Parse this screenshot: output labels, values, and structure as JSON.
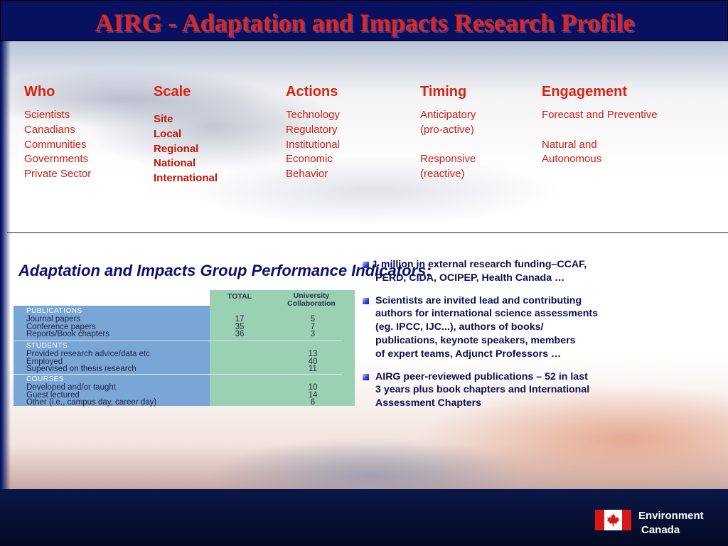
{
  "title": "AIRG - Adaptation and Impacts Research Profile",
  "columns": [
    {
      "heading": "Who",
      "items": [
        "Scientists",
        "Canadians",
        "Communities",
        "Governments",
        "Private Sector"
      ]
    },
    {
      "heading": "Scale",
      "items": [
        "Site",
        "Local",
        "Regional",
        "National",
        "International"
      ]
    },
    {
      "heading": "Actions",
      "items": [
        "Technology",
        "Regulatory",
        "Institutional",
        "Economic",
        "Behavior"
      ]
    },
    {
      "heading": "Timing",
      "items": [
        "Anticipatory",
        "(pro-active)",
        "",
        "Responsive",
        "(reactive)"
      ]
    },
    {
      "heading": "Engagement",
      "items": [
        "Forecast and Preventive",
        "",
        "Natural and",
        "Autonomous"
      ]
    }
  ],
  "subtitle": "Adaptation and Impacts Group Performance Indicators:",
  "table": {
    "headers": {
      "total": "TOTAL",
      "university": "University Collaboration"
    },
    "sections": [
      {
        "label": "PUBLICATIONS",
        "rows": [
          {
            "label": "Journal papers",
            "total": "17",
            "university": "5"
          },
          {
            "label": "Conference papers",
            "total": "35",
            "university": "7"
          },
          {
            "label": "Reports/Book chapters",
            "total": "36",
            "university": "3"
          }
        ]
      },
      {
        "label": "STUDENTS",
        "rows": [
          {
            "label": "Provided research advice/data etc",
            "total": "",
            "university": "13"
          },
          {
            "label": "Employed",
            "total": "",
            "university": "40"
          },
          {
            "label": "Supervised on thesis research",
            "total": "",
            "university": "11"
          }
        ]
      },
      {
        "label": "COURSES",
        "rows": [
          {
            "label": "Developed and/or taught",
            "total": "",
            "university": "10"
          },
          {
            "label": "Guest lectured",
            "total": "",
            "university": "14"
          },
          {
            "label": "Other (i.e., campus day, career day)",
            "total": "",
            "university": "6"
          }
        ]
      }
    ]
  },
  "bullets": [
    [
      "1 million in external research funding–CCAF,",
      "PERD, CIDA, OCIPEP, Health Canada …"
    ],
    [
      "Scientists are invited lead and contributing",
      "authors for international science assessments",
      "(eg. IPCC, IJC...), authors of books/",
      "publications, keynote speakers, members",
      "of expert teams, Adjunct Professors …"
    ],
    [
      "AIRG peer-reviewed publications – 52 in last",
      "3 years plus book chapters and International",
      "Assessment Chapters"
    ]
  ],
  "footer": {
    "org_line1": "Environment",
    "org_line2": "Canada",
    "flag_icon": "canada-flag-icon"
  },
  "colors": {
    "title": "#e02818",
    "heading": "#d8220f",
    "navy": "#0a1060",
    "table_blue": "#7aa6d6",
    "table_green": "#9bd1b3"
  }
}
